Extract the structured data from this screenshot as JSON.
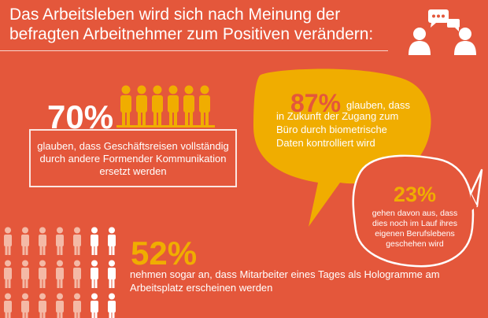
{
  "title": "Das Arbeitsleben wird sich nach Meinung der befragten Arbeitnehmer zum Positiven verändern:",
  "stat_70": {
    "percent": "70%",
    "text": "glauben, dass Geschäftsreisen vollständig durch andere Formender Kommunikation ersetzt werden"
  },
  "stat_87": {
    "percent": "87%",
    "lead": "glauben, dass",
    "text": "in Zukunft der Zugang zum Büro durch biometrische Daten kontrolliert wird"
  },
  "stat_23": {
    "percent": "23%",
    "text": "gehen davon aus, dass dies noch im Lauf ihres eigenen Berufslebens geschehen wird"
  },
  "stat_52": {
    "percent": "52%",
    "text": "nehmen sogar an, dass Mitarbeiter eines Tages als Hologramme am Arbeitsplatz erscheinen werden"
  },
  "colors": {
    "background": "#e4573b",
    "accent_yellow": "#f0ad00",
    "white": "#ffffff",
    "pale_figure": "#f4b9a6",
    "dark_figure": "#a8321d"
  },
  "icons": [
    "people-chat-icon",
    "person-figure-icon"
  ]
}
